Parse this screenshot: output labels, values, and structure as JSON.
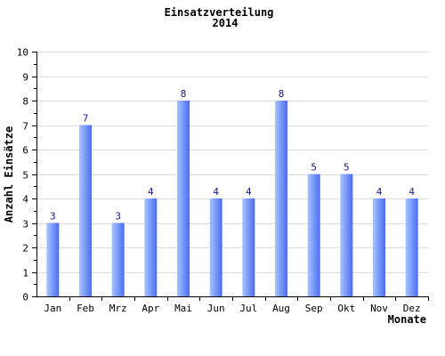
{
  "chart_data": {
    "type": "bar",
    "title": "Einsatzverteilung",
    "subtitle": "2014",
    "xlabel": "Monate",
    "ylabel": "Anzahl Einsätze",
    "categories": [
      "Jan",
      "Feb",
      "Mrz",
      "Apr",
      "Mai",
      "Jun",
      "Jul",
      "Aug",
      "Sep",
      "Okt",
      "Nov",
      "Dez"
    ],
    "values": [
      3,
      7,
      3,
      4,
      8,
      4,
      4,
      8,
      5,
      5,
      4,
      4
    ],
    "ylim": [
      0,
      10
    ],
    "yticks": [
      0,
      1,
      2,
      3,
      4,
      5,
      6,
      7,
      8,
      9,
      10
    ],
    "grid": true,
    "legend": "none",
    "colors": {
      "bar_light": "#a8c4ff",
      "bar_dark": "#4a6cf0",
      "label": "#1a1a8c"
    }
  }
}
